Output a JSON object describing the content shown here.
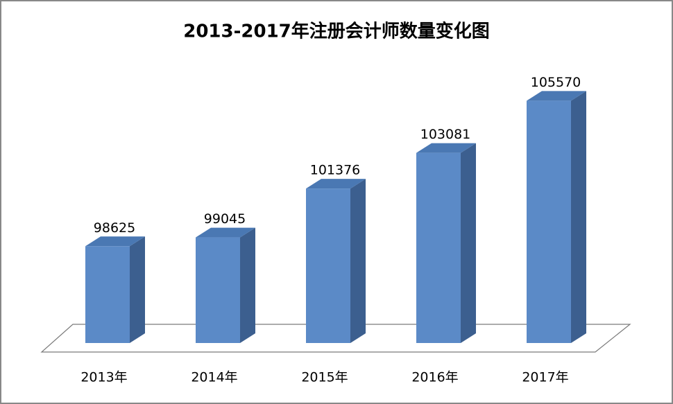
{
  "chart_data": {
    "type": "bar3d",
    "title": "2013-2017年注册会计师数量变化图",
    "categories": [
      "2013年",
      "2014年",
      "2015年",
      "2016年",
      "2017年"
    ],
    "values": [
      98625,
      99045,
      101376,
      103081,
      105570
    ],
    "color": "#5b8ac7",
    "ylim": [
      94000,
      108000
    ]
  }
}
